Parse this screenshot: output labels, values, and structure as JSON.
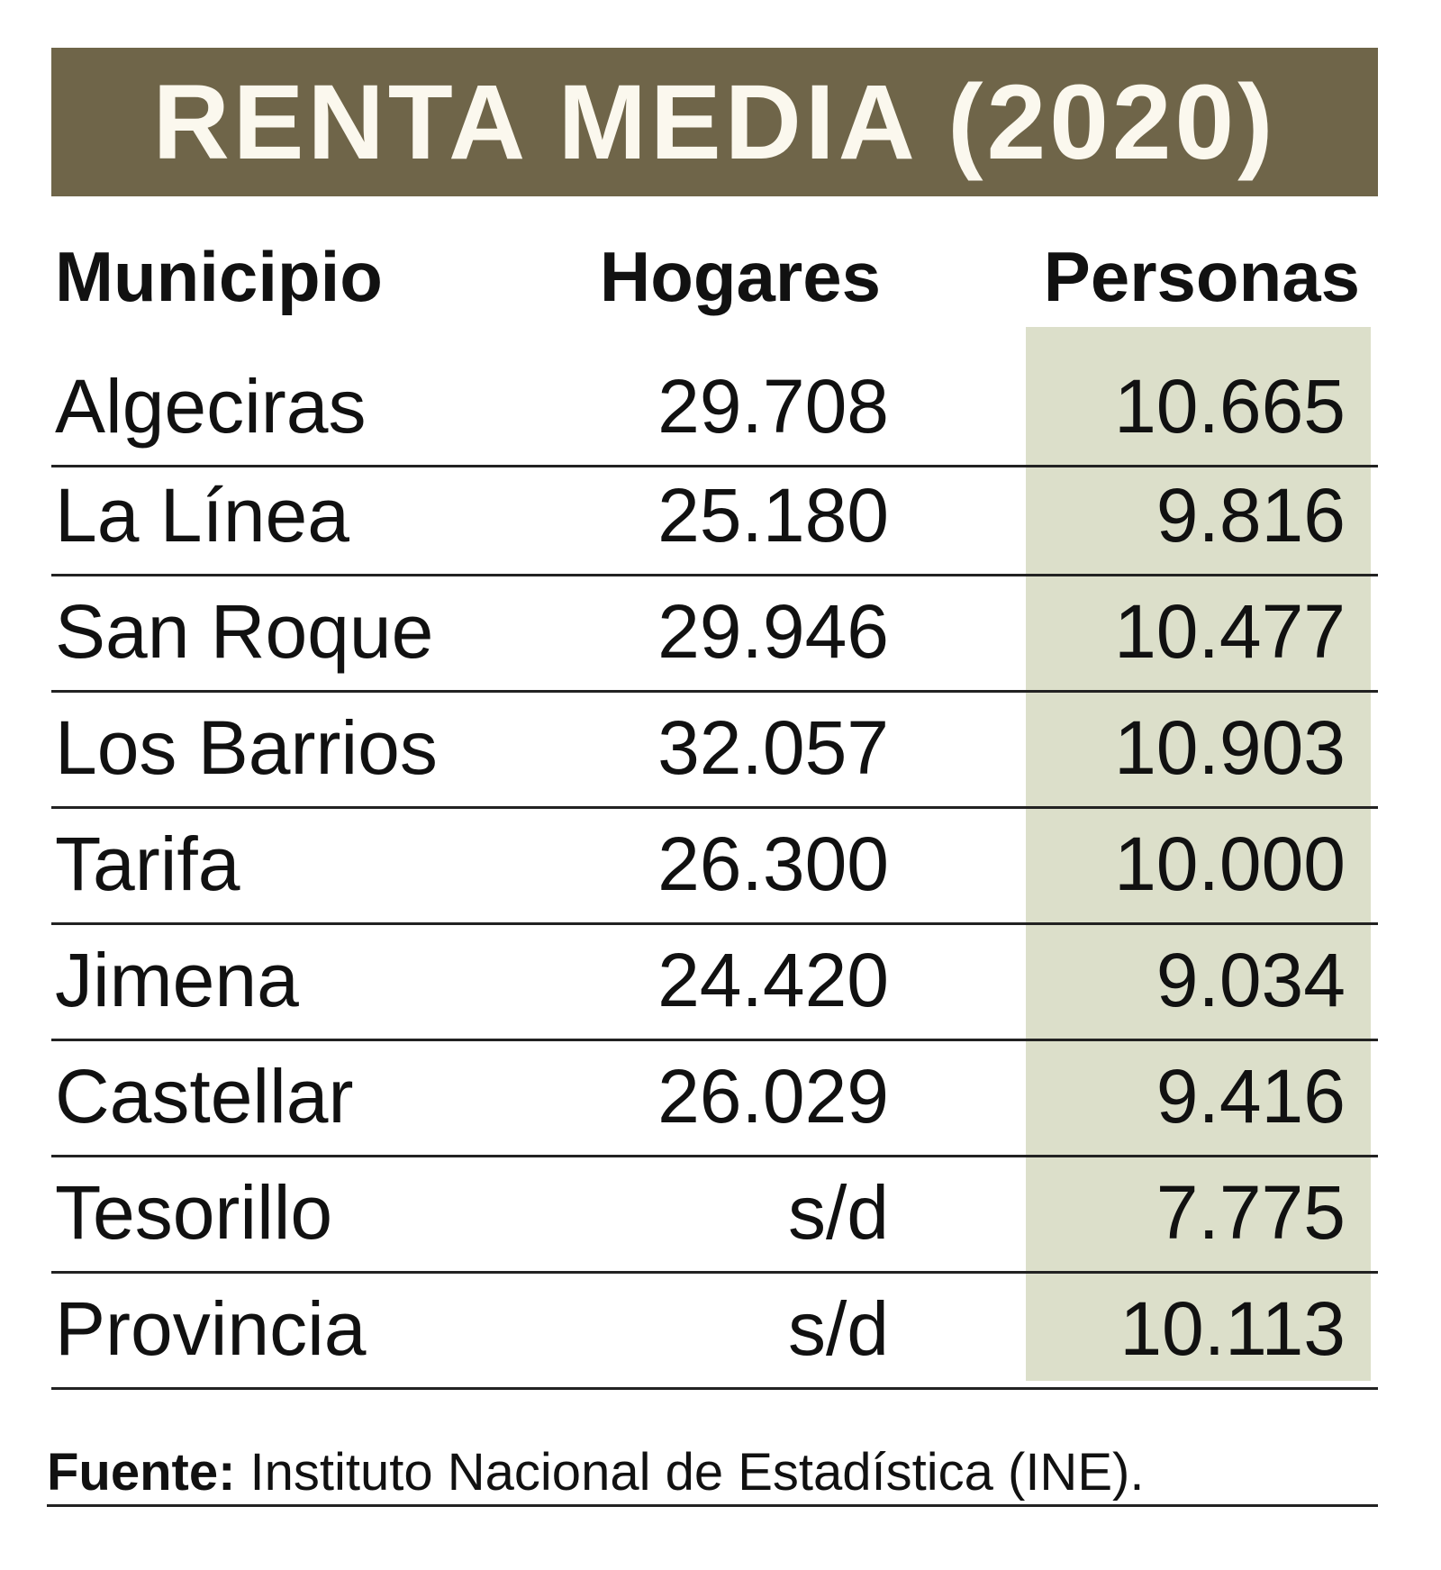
{
  "title": "RENTA MEDIA (2020)",
  "colors": {
    "title_band": "#6f6549",
    "title_text": "#fbf8ee",
    "personas_shade": "#dcdfca"
  },
  "columns": [
    "Municipio",
    "Hogares",
    "Personas"
  ],
  "rows": [
    {
      "municipio": "Algeciras",
      "hogares": "29.708",
      "personas": "10.665"
    },
    {
      "municipio": "La Línea",
      "hogares": "25.180",
      "personas": "9.816"
    },
    {
      "municipio": "San Roque",
      "hogares": "29.946",
      "personas": "10.477"
    },
    {
      "municipio": "Los Barrios",
      "hogares": "32.057",
      "personas": "10.903"
    },
    {
      "municipio": "Tarifa",
      "hogares": "26.300",
      "personas": "10.000"
    },
    {
      "municipio": "Jimena",
      "hogares": "24.420",
      "personas": "9.034"
    },
    {
      "municipio": "Castellar",
      "hogares": "26.029",
      "personas": "9.416"
    },
    {
      "municipio": "Tesorillo",
      "hogares": "s/d",
      "personas": "7.775"
    },
    {
      "municipio": "Provincia",
      "hogares": "s/d",
      "personas": "10.113"
    }
  ],
  "footer": {
    "label": "Fuente:",
    "text": " Instituto Nacional de Estadística (INE)."
  }
}
